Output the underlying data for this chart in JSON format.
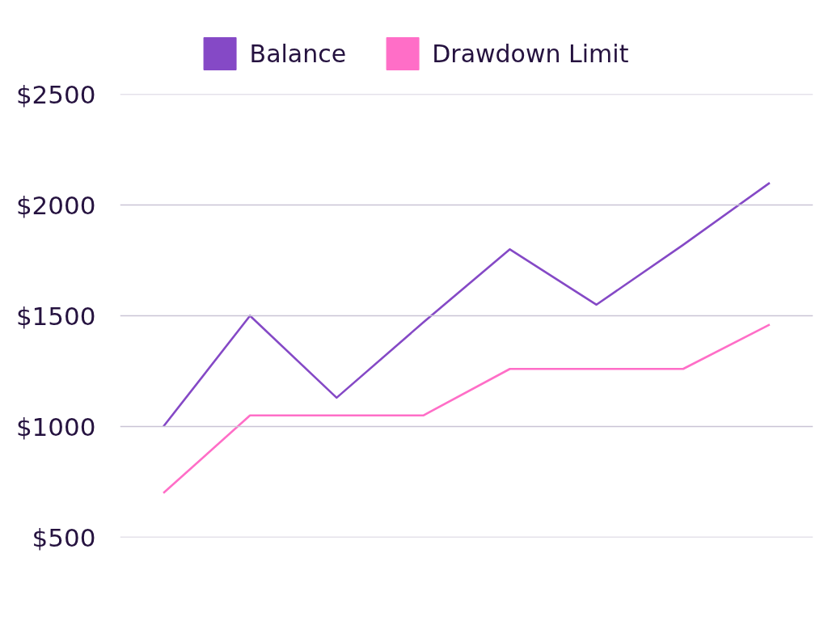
{
  "chart_data": {
    "type": "line",
    "categories": [
      null,
      null,
      null,
      null,
      null,
      null,
      null,
      null
    ],
    "series": [
      {
        "name": "Balance",
        "color": "#8549c6",
        "values": [
          1000,
          1500,
          1130,
          1470,
          1800,
          1550,
          1820,
          2100
        ]
      },
      {
        "name": "Drawdown Limit",
        "color": "#ff6ec7",
        "values": [
          700,
          1050,
          1050,
          1050,
          1260,
          1260,
          1260,
          1460
        ]
      }
    ],
    "ylim": [
      500,
      2500
    ],
    "yticks": [
      {
        "value": 500,
        "label": "$500"
      },
      {
        "value": 1000,
        "label": "$1000"
      },
      {
        "value": 1500,
        "label": "$1500"
      },
      {
        "value": 2000,
        "label": "$2000"
      },
      {
        "value": 2500,
        "label": "$2500"
      }
    ],
    "grid": "y",
    "legend": "top",
    "line_style": "solid"
  }
}
